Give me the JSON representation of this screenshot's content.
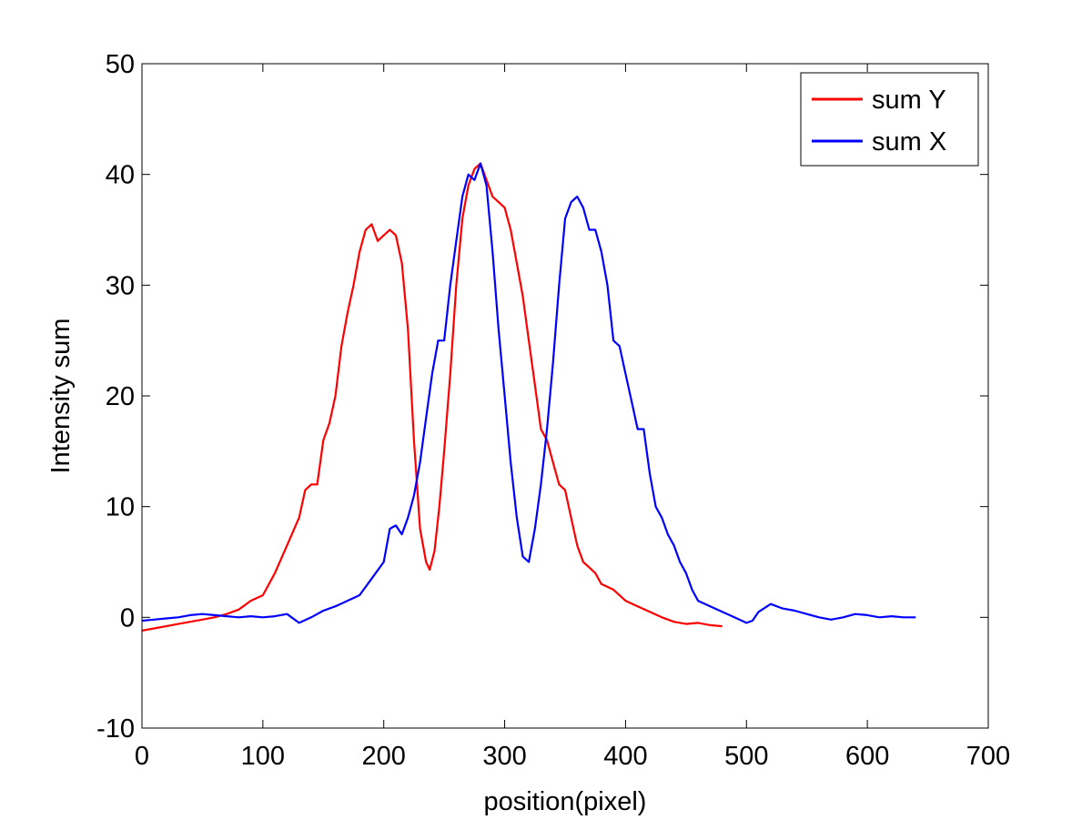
{
  "chart_data": {
    "type": "line",
    "title": "",
    "xlabel": "position(pixel)",
    "ylabel": "Intensity sum",
    "xlim": [
      0,
      700
    ],
    "ylim": [
      -10,
      50
    ],
    "xticks": [
      0,
      100,
      200,
      300,
      400,
      500,
      600,
      700
    ],
    "yticks": [
      -10,
      0,
      10,
      20,
      30,
      40,
      50
    ],
    "grid": false,
    "legend_position": "top-right",
    "series": [
      {
        "name": "sum Y",
        "color": "#ff0000",
        "x": [
          0,
          10,
          20,
          30,
          40,
          50,
          60,
          70,
          80,
          90,
          100,
          110,
          120,
          130,
          135,
          140,
          145,
          150,
          155,
          160,
          165,
          170,
          175,
          180,
          185,
          190,
          195,
          200,
          205,
          210,
          215,
          220,
          225,
          230,
          235,
          238,
          242,
          246,
          250,
          255,
          260,
          265,
          270,
          275,
          280,
          285,
          290,
          295,
          300,
          305,
          310,
          315,
          320,
          325,
          330,
          335,
          340,
          345,
          350,
          355,
          360,
          365,
          370,
          375,
          380,
          390,
          400,
          410,
          420,
          430,
          440,
          450,
          460,
          470,
          480
        ],
        "y": [
          -1.2,
          -1.0,
          -0.8,
          -0.6,
          -0.4,
          -0.2,
          0,
          0.3,
          0.7,
          1.5,
          2.0,
          4.0,
          6.5,
          9.0,
          11.5,
          12.0,
          12.0,
          16.0,
          17.5,
          20.0,
          24.5,
          27.5,
          30.0,
          33.0,
          35.0,
          35.5,
          34.0,
          34.5,
          35.0,
          34.5,
          32.0,
          26.0,
          16.0,
          8.0,
          5.0,
          4.3,
          6.0,
          10.0,
          15.0,
          22.0,
          30.0,
          36.0,
          39.0,
          40.5,
          41.0,
          39.5,
          38.0,
          37.5,
          37.0,
          35.0,
          32.0,
          29.0,
          25.0,
          21.0,
          17.0,
          16.0,
          14.0,
          12.0,
          11.5,
          9.0,
          6.5,
          5.0,
          4.5,
          4.0,
          3.0,
          2.5,
          1.5,
          1.0,
          0.5,
          0.0,
          -0.4,
          -0.6,
          -0.5,
          -0.7,
          -0.8
        ]
      },
      {
        "name": "sum X",
        "color": "#0000ff",
        "x": [
          0,
          10,
          20,
          30,
          40,
          50,
          60,
          70,
          80,
          90,
          100,
          110,
          120,
          130,
          140,
          150,
          160,
          170,
          180,
          190,
          200,
          205,
          210,
          215,
          220,
          225,
          230,
          235,
          240,
          245,
          250,
          255,
          260,
          265,
          270,
          275,
          280,
          285,
          290,
          295,
          300,
          305,
          310,
          315,
          320,
          325,
          330,
          335,
          340,
          345,
          350,
          355,
          360,
          365,
          370,
          375,
          380,
          385,
          390,
          395,
          400,
          405,
          410,
          415,
          420,
          425,
          430,
          435,
          440,
          445,
          450,
          455,
          460,
          470,
          480,
          490,
          500,
          505,
          510,
          520,
          530,
          540,
          550,
          560,
          570,
          580,
          590,
          600,
          610,
          620,
          630,
          640
        ],
        "y": [
          -0.3,
          -0.2,
          -0.1,
          0,
          0.2,
          0.3,
          0.2,
          0.1,
          0.0,
          0.1,
          0.0,
          0.1,
          0.3,
          -0.5,
          0.0,
          0.6,
          1.0,
          1.5,
          2.0,
          3.5,
          5.0,
          8.0,
          8.3,
          7.5,
          9.0,
          11.0,
          14.0,
          18.0,
          22.0,
          25.0,
          25.0,
          30.0,
          34.0,
          38.0,
          40.0,
          39.5,
          41.0,
          39.0,
          33.0,
          26.0,
          20.0,
          14.0,
          9.0,
          5.5,
          5.0,
          8.0,
          12.0,
          17.0,
          23.0,
          30.0,
          36.0,
          37.5,
          38.0,
          37.0,
          35.0,
          35.0,
          33.0,
          30.0,
          25.0,
          24.5,
          22.0,
          19.5,
          17.0,
          17.0,
          13.0,
          10.0,
          9.0,
          7.5,
          6.5,
          5.0,
          4.0,
          2.5,
          1.5,
          1.0,
          0.5,
          0.0,
          -0.5,
          -0.3,
          0.5,
          1.2,
          0.8,
          0.6,
          0.3,
          0.0,
          -0.2,
          0.0,
          0.3,
          0.2,
          0.0,
          0.1,
          0.0,
          0.0
        ]
      }
    ]
  }
}
